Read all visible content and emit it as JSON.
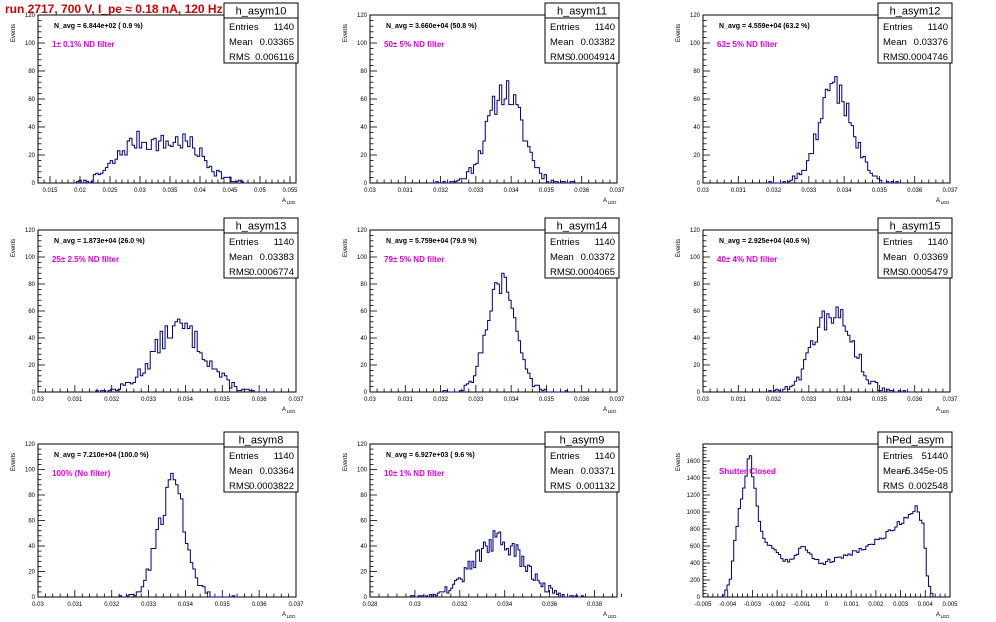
{
  "page_title": "run 2717,   700 V, I_pe ≈ 0.18 nA, 120 Hz",
  "colors": {
    "histogram": "#000080",
    "filter_label": "#e000e0",
    "title_red": "#d40000",
    "text": "#000000"
  },
  "ylabel": "Events",
  "xlabel_main": "A",
  "xlabel_sub": "LED",
  "stats_labels": {
    "entries": "Entries",
    "mean": "Mean",
    "rms": "RMS"
  },
  "chart_data": [
    {
      "type": "histogram",
      "name": "h_asym10",
      "entries": "1140",
      "mean": "0.03365",
      "rms": "0.006116",
      "n_avg": "N_avg = 6.844e+02 ( 0.9 %)",
      "annotation": "1± 0.1% ND filter",
      "xlim": [
        0.013,
        0.056
      ],
      "ylim": [
        0,
        120
      ],
      "xticks": [
        0.015,
        0.02,
        0.025,
        0.03,
        0.035,
        0.04,
        0.045,
        0.05,
        0.055
      ],
      "xticklabels": [
        "0.015",
        "0.02",
        "0.025",
        "0.03",
        "0.035",
        "0.04",
        "0.045",
        "0.05",
        "0.055"
      ],
      "yticks": [
        0,
        20,
        40,
        60,
        80,
        100,
        120
      ],
      "gaussians": [
        {
          "mu": 0.0295,
          "sigma": 0.0035,
          "amp": 28
        },
        {
          "mu": 0.0375,
          "sigma": 0.0034,
          "amp": 27
        }
      ],
      "range": [
        0.019,
        0.048
      ],
      "nbins": 72,
      "seed": 7
    },
    {
      "type": "histogram",
      "name": "h_asym11",
      "entries": "1140",
      "mean": "0.03382",
      "rms": "0.0004914",
      "n_avg": "N_avg = 3.660e+04 (50.8 %)",
      "annotation": "50± 5% ND filter",
      "xlim": [
        0.03,
        0.037
      ],
      "ylim": [
        0,
        120
      ],
      "xticks": [
        0.03,
        0.031,
        0.032,
        0.033,
        0.034,
        0.035,
        0.036,
        0.037
      ],
      "xticklabels": [
        "0.03",
        "0.031",
        "0.032",
        "0.033",
        "0.034",
        "0.035",
        "0.036",
        "0.037"
      ],
      "yticks": [
        0,
        20,
        40,
        60,
        80,
        100,
        120
      ],
      "gaussians": [
        {
          "mu": 0.03382,
          "sigma": 0.00049,
          "amp": 66
        }
      ],
      "range": [
        0.0318,
        0.0358
      ],
      "nbins": 60,
      "seed": 11
    },
    {
      "type": "histogram",
      "name": "h_asym12",
      "entries": "1140",
      "mean": "0.03376",
      "rms": "0.0004746",
      "n_avg": "N_avg = 4.559e+04 (63.2 %)",
      "annotation": "63± 5% ND filter",
      "xlim": [
        0.03,
        0.037
      ],
      "ylim": [
        0,
        120
      ],
      "xticks": [
        0.03,
        0.031,
        0.032,
        0.033,
        0.034,
        0.035,
        0.036,
        0.037
      ],
      "xticklabels": [
        "0.03",
        "0.031",
        "0.032",
        "0.033",
        "0.034",
        "0.035",
        "0.036",
        "0.037"
      ],
      "yticks": [
        0,
        20,
        40,
        60,
        80,
        100,
        120
      ],
      "gaussians": [
        {
          "mu": 0.03376,
          "sigma": 0.00047,
          "amp": 68
        }
      ],
      "range": [
        0.0318,
        0.0358
      ],
      "nbins": 60,
      "seed": 12
    },
    {
      "type": "histogram",
      "name": "h_asym13",
      "entries": "1140",
      "mean": "0.03383",
      "rms": "0.0006774",
      "n_avg": "N_avg = 1.873e+04 (26.0 %)",
      "annotation": "25± 2.5% ND filter",
      "xlim": [
        0.03,
        0.037
      ],
      "ylim": [
        0,
        120
      ],
      "xticks": [
        0.03,
        0.031,
        0.032,
        0.033,
        0.034,
        0.035,
        0.036,
        0.037
      ],
      "xticklabels": [
        "0.03",
        "0.031",
        "0.032",
        "0.033",
        "0.034",
        "0.035",
        "0.036",
        "0.037"
      ],
      "yticks": [
        0,
        20,
        40,
        60,
        80,
        100,
        120
      ],
      "gaussians": [
        {
          "mu": 0.03383,
          "sigma": 0.00068,
          "amp": 48
        }
      ],
      "range": [
        0.0315,
        0.0362
      ],
      "nbins": 70,
      "seed": 13
    },
    {
      "type": "histogram",
      "name": "h_asym14",
      "entries": "1140",
      "mean": "0.03372",
      "rms": "0.0004065",
      "n_avg": "N_avg = 5.759e+04 (79.9 %)",
      "annotation": "79± 5% ND filter",
      "xlim": [
        0.03,
        0.037
      ],
      "ylim": [
        0,
        120
      ],
      "xticks": [
        0.03,
        0.031,
        0.032,
        0.033,
        0.034,
        0.035,
        0.036,
        0.037
      ],
      "xticklabels": [
        "0.03",
        "0.031",
        "0.032",
        "0.033",
        "0.034",
        "0.035",
        "0.036",
        "0.037"
      ],
      "yticks": [
        0,
        20,
        40,
        60,
        80,
        100,
        120
      ],
      "gaussians": [
        {
          "mu": 0.03372,
          "sigma": 0.00041,
          "amp": 80
        }
      ],
      "range": [
        0.032,
        0.0356
      ],
      "nbins": 54,
      "seed": 14
    },
    {
      "type": "histogram",
      "name": "h_asym15",
      "entries": "1140",
      "mean": "0.03369",
      "rms": "0.0005479",
      "n_avg": "N_avg = 2.925e+04 (40.6 %)",
      "annotation": "40± 4% ND filter",
      "xlim": [
        0.03,
        0.037
      ],
      "ylim": [
        0,
        120
      ],
      "xticks": [
        0.03,
        0.031,
        0.032,
        0.033,
        0.034,
        0.035,
        0.036,
        0.037
      ],
      "xticklabels": [
        "0.03",
        "0.031",
        "0.032",
        "0.033",
        "0.034",
        "0.035",
        "0.036",
        "0.037"
      ],
      "yticks": [
        0,
        20,
        40,
        60,
        80,
        100,
        120
      ],
      "gaussians": [
        {
          "mu": 0.03369,
          "sigma": 0.00055,
          "amp": 58
        }
      ],
      "range": [
        0.0318,
        0.036
      ],
      "nbins": 64,
      "seed": 15
    },
    {
      "type": "histogram",
      "name": "h_asym8",
      "entries": "1140",
      "mean": "0.03364",
      "rms": "0.0003822",
      "n_avg": "N_avg = 7.210e+04 (100.0 %)",
      "annotation": "100% (No filter)",
      "xlim": [
        0.03,
        0.037
      ],
      "ylim": [
        0,
        120
      ],
      "xticks": [
        0.03,
        0.031,
        0.032,
        0.033,
        0.034,
        0.035,
        0.036,
        0.037
      ],
      "xticklabels": [
        "0.03",
        "0.031",
        "0.032",
        "0.033",
        "0.034",
        "0.035",
        "0.036",
        "0.037"
      ],
      "yticks": [
        0,
        20,
        40,
        60,
        80,
        100,
        120
      ],
      "gaussians": [
        {
          "mu": 0.03364,
          "sigma": 0.00038,
          "amp": 86
        }
      ],
      "range": [
        0.0322,
        0.0354
      ],
      "nbins": 48,
      "seed": 8
    },
    {
      "type": "histogram",
      "name": "h_asym9",
      "entries": "1140",
      "mean": "0.03371",
      "rms": "0.001132",
      "n_avg": "N_avg = 6.927e+03 ( 9.6 %)",
      "annotation": "10± 1% ND filter",
      "xlim": [
        0.028,
        0.039
      ],
      "ylim": [
        0,
        120
      ],
      "xticks": [
        0.028,
        0.03,
        0.032,
        0.034,
        0.036,
        0.038
      ],
      "xticklabels": [
        "0.028",
        "0.03",
        "0.032",
        "0.034",
        "0.036",
        "0.038"
      ],
      "yticks": [
        0,
        20,
        40,
        60,
        80,
        100,
        120
      ],
      "gaussians": [
        {
          "mu": 0.03371,
          "sigma": 0.00113,
          "amp": 44
        }
      ],
      "range": [
        0.0298,
        0.0375
      ],
      "nbins": 90,
      "seed": 9
    },
    {
      "type": "histogram",
      "name": "hPed_asym",
      "entries": "51440",
      "mean": "-5.345e-05",
      "rms": "0.002548",
      "n_avg": "",
      "annotation": "Shutter Closed",
      "xlim": [
        -0.005,
        0.005
      ],
      "ylim": [
        0,
        1800
      ],
      "xticks": [
        -0.005,
        -0.004,
        -0.003,
        -0.002,
        -0.001,
        0,
        0.001,
        0.002,
        0.003,
        0.004,
        0.005
      ],
      "xticklabels": [
        "-0.005",
        "-0.004",
        "-0.003",
        "-0.002",
        "-0.001",
        "0",
        "0.001",
        "0.002",
        "0.003",
        "0.004",
        "0.005"
      ],
      "yticks": [
        0,
        200,
        400,
        600,
        800,
        1000,
        1200,
        1400,
        1600
      ],
      "profile": [
        [
          -0.0042,
          0
        ],
        [
          -0.0039,
          200
        ],
        [
          -0.0036,
          900
        ],
        [
          -0.0033,
          1400
        ],
        [
          -0.0031,
          1680
        ],
        [
          -0.0029,
          1250
        ],
        [
          -0.0027,
          850
        ],
        [
          -0.0024,
          620
        ],
        [
          -0.0021,
          560
        ],
        [
          -0.0018,
          450
        ],
        [
          -0.0015,
          420
        ],
        [
          -0.0012,
          520
        ],
        [
          -0.001,
          600
        ],
        [
          -0.0008,
          540
        ],
        [
          -0.0005,
          450
        ],
        [
          -0.0002,
          400
        ],
        [
          0.0001,
          420
        ],
        [
          0.0004,
          440
        ],
        [
          0.0007,
          480
        ],
        [
          0.001,
          520
        ],
        [
          0.0014,
          560
        ],
        [
          0.0018,
          620
        ],
        [
          0.0022,
          680
        ],
        [
          0.0026,
          790
        ],
        [
          0.003,
          880
        ],
        [
          0.0033,
          960
        ],
        [
          0.0036,
          1060
        ],
        [
          0.0039,
          850
        ],
        [
          0.0041,
          200
        ],
        [
          0.0043,
          0
        ]
      ],
      "range": [
        -0.0043,
        0.0044
      ],
      "nbins": 96,
      "seed": 21
    }
  ]
}
